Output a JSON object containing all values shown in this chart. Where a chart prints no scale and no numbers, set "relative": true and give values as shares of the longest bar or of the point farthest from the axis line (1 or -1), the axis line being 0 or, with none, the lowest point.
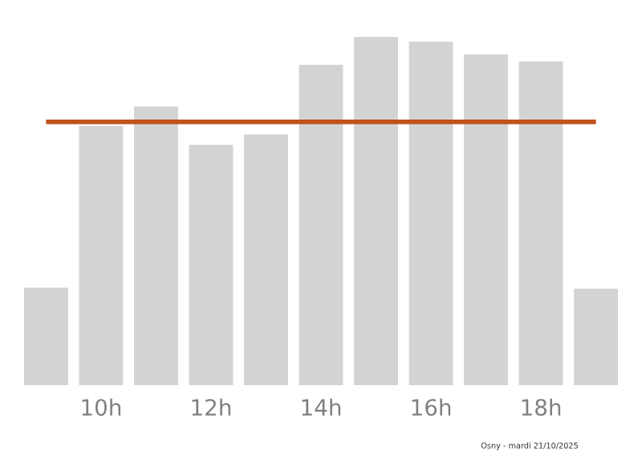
{
  "chart_data": {
    "type": "bar",
    "relative": true,
    "categories": [
      null,
      "10h",
      null,
      "12h",
      null,
      "14h",
      null,
      "16h",
      null,
      "18h",
      null
    ],
    "values": [
      0.28,
      0.745,
      0.8,
      0.69,
      0.72,
      0.92,
      1,
      0.986,
      0.95,
      0.93,
      0.277
    ],
    "color": "#d3d3d3",
    "ref_lines": [
      {
        "axis": "y",
        "value": 0.756,
        "color": "#c0521a"
      }
    ],
    "annotations": [
      "Osny - mardi 21/10/2025"
    ],
    "grid": false,
    "legend": false
  }
}
